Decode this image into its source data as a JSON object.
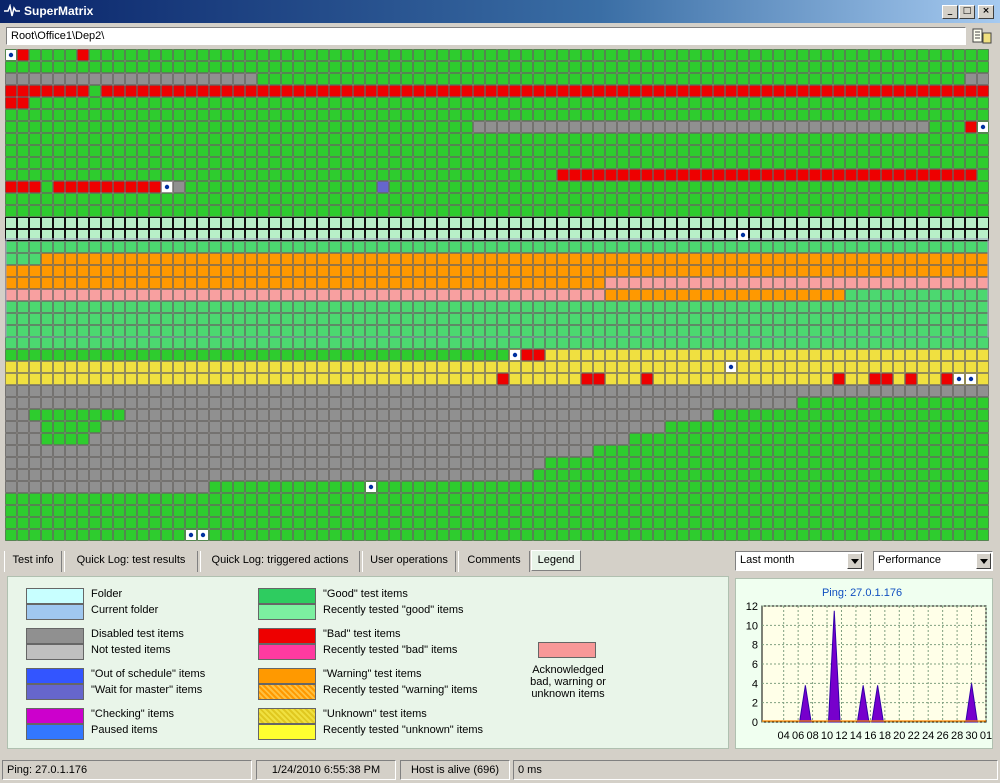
{
  "window": {
    "title": "SuperMatrix"
  },
  "path": {
    "value": "Root\\Office1\\Dep2\\"
  },
  "tabs": [
    {
      "label": "Test info",
      "active": false
    },
    {
      "label": "Quick Log: test results",
      "active": false
    },
    {
      "label": "Quick Log: triggered actions",
      "active": false
    },
    {
      "label": "User operations",
      "active": false
    },
    {
      "label": "Comments",
      "active": false
    },
    {
      "label": "Legend",
      "active": true
    }
  ],
  "period_select": {
    "value": "Last month"
  },
  "metric_select": {
    "value": "Performance"
  },
  "colors": {
    "good": "#2ecc2e",
    "good_recent": "#7cf0a0",
    "bad": "#ee0000",
    "bad_recent": "#ff3aa0",
    "warning": "#ff9900",
    "warning_recent": "#ffa820",
    "unknown": "#f0e040",
    "unknown_recent": "#ffff30",
    "folder": "#c8ffff",
    "folder_current": "#a0c8f0",
    "disabled": "#909090",
    "not_tested": "#c0c0c0",
    "out_of_schedule": "#3355ff",
    "wait_for_master": "#6666cc",
    "checking": "#cc00cc",
    "paused": "#3377ff",
    "acknowledged": "#f89898",
    "chart_fill": "#7700cc"
  },
  "legend": {
    "col1": [
      {
        "a": "Folder",
        "b": "Current folder"
      },
      {
        "a": "Disabled test items",
        "b": "Not tested items"
      },
      {
        "a": "\"Out of schedule\" items",
        "b": "\"Wait for master\" items"
      },
      {
        "a": "\"Checking\" items",
        "b": "Paused items"
      }
    ],
    "col2": [
      {
        "a": "\"Good\" test items",
        "b": "Recently tested \"good\" items"
      },
      {
        "a": "\"Bad\" test items",
        "b": "Recently tested \"bad\" items"
      },
      {
        "a": "\"Warning\" test items",
        "b": "Recently tested \"warning\" items"
      },
      {
        "a": "\"Unknown\" test items",
        "b": "Recently tested \"unknown\" items"
      }
    ],
    "ack": [
      "Acknowledged",
      "bad, warning or",
      "unknown items"
    ]
  },
  "chart_data": {
    "type": "area",
    "title": "Ping: 27.0.1.176",
    "x_ticks": [
      "04",
      "06",
      "08",
      "10",
      "12",
      "14",
      "16",
      "18",
      "20",
      "22",
      "24",
      "26",
      "28",
      "30",
      "01"
    ],
    "y_ticks": [
      0,
      2,
      4,
      6,
      8,
      10,
      12
    ],
    "ylim": [
      0,
      12
    ],
    "xlim": [
      1,
      32
    ],
    "points": [
      {
        "x": 7,
        "y": 3.8
      },
      {
        "x": 11,
        "y": 11.5
      },
      {
        "x": 15,
        "y": 3.8
      },
      {
        "x": 17,
        "y": 3.8
      },
      {
        "x": 30,
        "y": 4
      }
    ],
    "grid": true
  },
  "status": {
    "ping": "Ping: 27.0.1.176",
    "datetime": "1/24/2010 6:55:38 PM",
    "host": "Host is alive (696)",
    "rtt": "0 ms"
  }
}
